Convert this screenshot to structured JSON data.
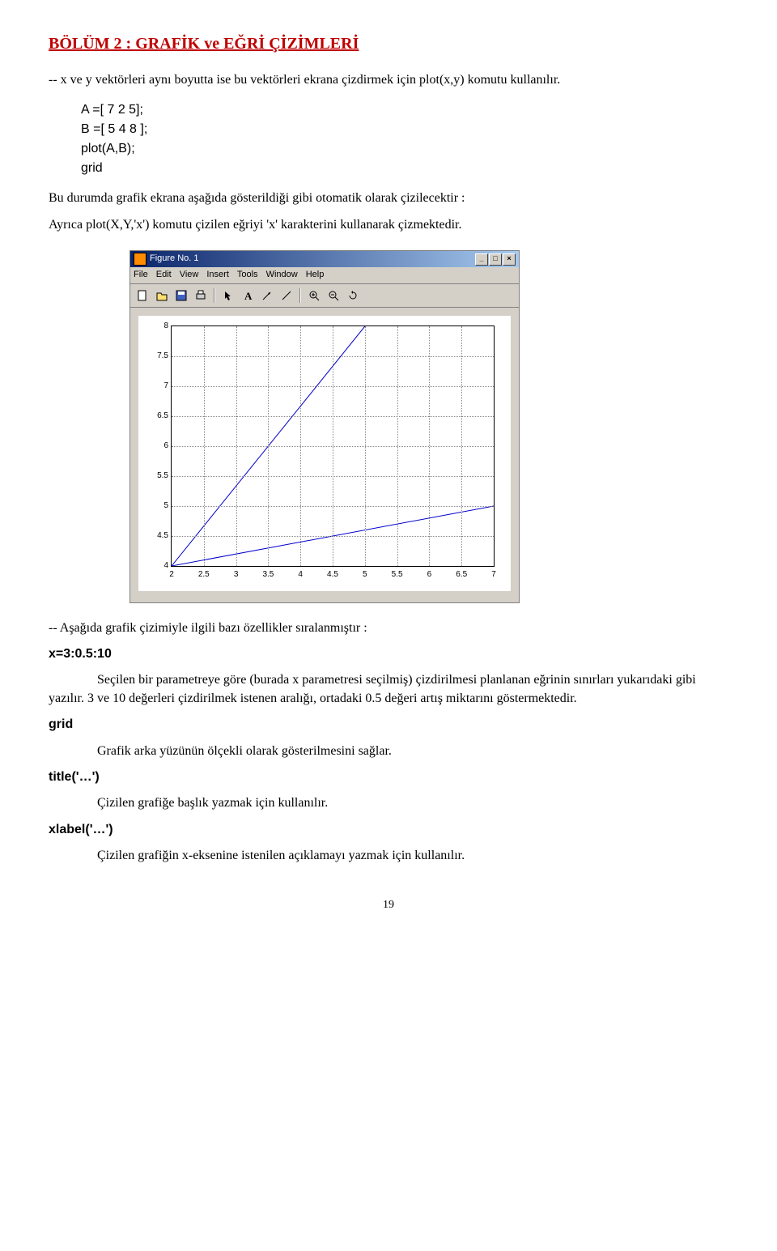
{
  "section_title": "BÖLÜM 2 : GRAFİK  ve EĞRİ ÇİZİMLERİ",
  "intro_text": "--  x ve y vektörleri aynı boyutta ise bu vektörleri ekrana çizdirmek için plot(x,y) komutu kullanılır.",
  "code": {
    "l1": "A =[ 7  2  5];",
    "l2": "B =[ 5  4  8 ];",
    "l3": "plot(A,B);",
    "l4": "grid"
  },
  "para1": "Bu durumda grafik ekrana aşağıda gösterildiği gibi otomatik olarak çizilecektir :",
  "para2": "Ayrıca plot(X,Y,'x') komutu çizilen eğriyi 'x' karakterini kullanarak çizmektedir.",
  "figure": {
    "title": "Figure No. 1",
    "menus": [
      "File",
      "Edit",
      "View",
      "Insert",
      "Tools",
      "Window",
      "Help"
    ],
    "toolbar_icons": [
      "new",
      "open",
      "save",
      "print",
      "arrow",
      "text",
      "line-arrow",
      "line",
      "zoom-in",
      "zoom-out",
      "rotate"
    ],
    "win_btns": [
      "_",
      "□",
      "×"
    ],
    "chart": {
      "xlim": [
        2,
        7
      ],
      "ylim": [
        4,
        8
      ],
      "xticks": [
        2,
        2.5,
        3,
        3.5,
        4,
        4.5,
        5,
        5.5,
        6,
        6.5,
        7
      ],
      "yticks": [
        4,
        4.5,
        5,
        5.5,
        6,
        6.5,
        7,
        7.5,
        8
      ],
      "series": {
        "x": [
          7,
          2,
          5
        ],
        "y": [
          5,
          4,
          8
        ],
        "color": "#0000cc",
        "linewidth": 1
      },
      "background": "#ffffff",
      "grid_color": "#888888"
    }
  },
  "para3": "-- Aşağıda grafik çizimiyle ilgili bazı özellikler sıralanmıştır :",
  "defs": {
    "x_range": "x=3:0.5:10",
    "x_range_text1": "Seçilen bir parametreye göre (burada x parametresi seçilmiş) çizdirilmesi planlanan eğrinin sınırları yukarıdaki gibi yazılır. 3 ve 10 değerleri çizdirilmek istenen aralığı, ortadaki 0.5 değeri artış miktarını göstermektedir.",
    "grid": "grid",
    "grid_text": "Grafik arka yüzünün ölçekli olarak gösterilmesini sağlar.",
    "title": "title('…')",
    "title_text": "Çizilen grafiğe başlık yazmak için kullanılır.",
    "xlabel": "xlabel('…')",
    "xlabel_text": "Çizilen grafiğin x-eksenine istenilen açıklamayı yazmak için kullanılır."
  },
  "page_number": "19"
}
